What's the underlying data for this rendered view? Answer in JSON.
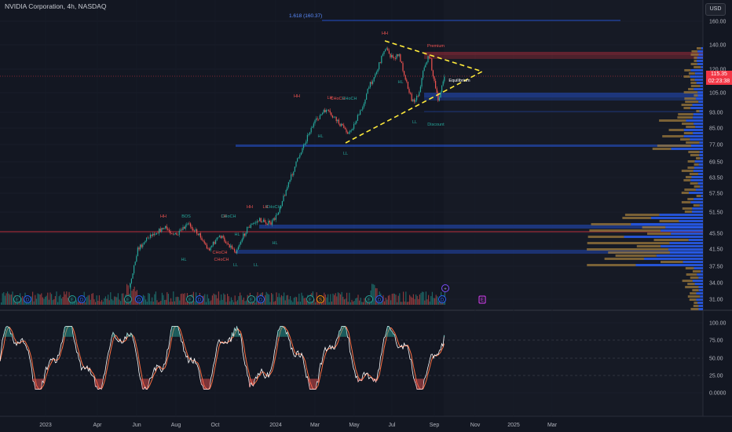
{
  "header": {
    "symbol_title": "NVIDIA Corporation, 4h, NASDAQ",
    "currency_button": "USD"
  },
  "price_tag": {
    "price": "115.35",
    "countdown": "02:23:38"
  },
  "colors": {
    "background": "#131722",
    "up": "#26a69a",
    "down": "#ef5350",
    "trendline": "#ffeb3b",
    "fib_line": "#2962ff",
    "volume_profile_up": "#2962ff",
    "volume_profile_down": "#9c7a3c",
    "stoch_k": "#ffffff",
    "stoch_d": "#ff7043",
    "price_tag": "#f23645"
  },
  "fib_label": "1.618 (160.37)",
  "price_axis": [
    "160.00",
    "140.00",
    "120.00",
    "105.00",
    "93.00",
    "85.00",
    "77.00",
    "69.50",
    "63.50",
    "57.50",
    "51.50",
    "45.50",
    "41.50",
    "37.50",
    "34.00",
    "31.00"
  ],
  "oscillator_axis": [
    "100.00",
    "75.00",
    "50.00",
    "25.00",
    "0.0000"
  ],
  "time_axis": [
    "2023",
    "Apr",
    "Jun",
    "Aug",
    "Oct",
    "2024",
    "Mar",
    "May",
    "Jul",
    "Sep",
    "Nov",
    "2025",
    "Mar"
  ],
  "structure_labels": [
    {
      "text": "HH",
      "c": "down"
    },
    {
      "text": "BOS",
      "c": "up"
    },
    {
      "text": "HL",
      "c": "up"
    },
    {
      "text": "LH",
      "c": "down"
    },
    {
      "text": "CHoCH",
      "c": "up"
    },
    {
      "text": "CHoCH",
      "c": "down"
    },
    {
      "text": "LL",
      "c": "up"
    },
    {
      "text": "HL",
      "c": "up"
    },
    {
      "text": "HH",
      "c": "down"
    },
    {
      "text": "LH",
      "c": "down"
    },
    {
      "text": "CHoCH",
      "c": "up"
    },
    {
      "text": "HL",
      "c": "up"
    },
    {
      "text": "CHoCH",
      "c": "down"
    },
    {
      "text": "HH",
      "c": "down"
    },
    {
      "text": "LH",
      "c": "down"
    },
    {
      "text": "HL",
      "c": "up"
    },
    {
      "text": "CHoCH",
      "c": "up"
    },
    {
      "text": "LL",
      "c": "up"
    },
    {
      "text": "Premium",
      "c": "down"
    },
    {
      "text": "Equilibrium",
      "c": "white"
    },
    {
      "text": "Discount",
      "c": "up"
    },
    {
      "text": "HH",
      "c": "down"
    },
    {
      "text": "HL",
      "c": "up"
    },
    {
      "text": "LL",
      "c": "up"
    },
    {
      "text": "CHoCH",
      "c": "down"
    },
    {
      "text": "LL",
      "c": "up"
    }
  ],
  "event_markers": [
    {
      "label": "E",
      "kind": "earnings"
    },
    {
      "label": "D",
      "kind": "dividend"
    },
    {
      "label": "E",
      "kind": "earnings"
    },
    {
      "label": "D",
      "kind": "dividend"
    },
    {
      "label": "E",
      "kind": "earnings"
    },
    {
      "label": "D",
      "kind": "dividend"
    },
    {
      "label": "E",
      "kind": "earnings"
    },
    {
      "label": "D",
      "kind": "dividend"
    },
    {
      "label": "E",
      "kind": "earnings"
    },
    {
      "label": "D",
      "kind": "dividend"
    },
    {
      "label": "E",
      "kind": "earnings"
    },
    {
      "label": "S",
      "kind": "split"
    },
    {
      "label": "E",
      "kind": "earnings"
    },
    {
      "label": "D",
      "kind": "dividend"
    },
    {
      "label": "D",
      "kind": "dividend"
    },
    {
      "label": "E",
      "kind": "upcoming"
    }
  ]
}
